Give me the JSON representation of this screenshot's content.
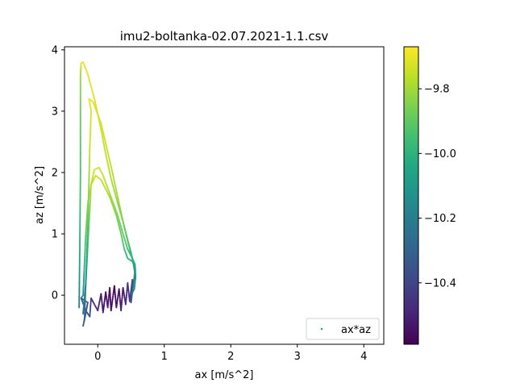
{
  "chart_data": {
    "type": "scatter",
    "title": "imu2-boltanka-02.07.2021-1.1.csv",
    "xlabel": "ax [m/s^2]",
    "ylabel": "az [m/s^2]",
    "xlim": [
      -0.5,
      4.3
    ],
    "ylim": [
      -0.8,
      4.05
    ],
    "xticks": [
      "0",
      "1",
      "2",
      "3",
      "4"
    ],
    "yticks": [
      "0",
      "1",
      "2",
      "3",
      "4"
    ],
    "legend": {
      "label": "ax*az",
      "placement": "lower-right"
    },
    "grid": false,
    "colorbar": {
      "cmap": "viridis",
      "range": [
        -10.59,
        -9.67
      ],
      "ticks": [
        "-9.8",
        "-10.0",
        "-10.2",
        "-10.4"
      ],
      "tick_values": [
        -9.8,
        -10.0,
        -10.2,
        -10.4
      ]
    },
    "series": [
      {
        "points": [
          [
            -0.22,
            -0.5,
            -10.33
          ],
          [
            -0.18,
            -0.3,
            -10.35
          ],
          [
            -0.15,
            -0.12,
            -10.4
          ],
          [
            -0.25,
            -0.05,
            -10.32
          ],
          [
            -0.18,
            -0.25,
            -10.3
          ],
          [
            -0.12,
            -0.35,
            -10.38
          ],
          [
            -0.1,
            -0.05,
            -10.45
          ],
          [
            0.0,
            -0.25,
            -10.48
          ],
          [
            0.05,
            0.02,
            -10.55
          ],
          [
            0.08,
            -0.28,
            -10.52
          ],
          [
            0.12,
            0.05,
            -10.58
          ],
          [
            0.15,
            -0.2,
            -10.5
          ],
          [
            0.18,
            0.12,
            -10.57
          ],
          [
            0.2,
            -0.25,
            -10.55
          ],
          [
            0.25,
            0.15,
            -10.58
          ],
          [
            0.28,
            -0.2,
            -10.52
          ],
          [
            0.32,
            0.1,
            -10.55
          ],
          [
            0.35,
            -0.25,
            -10.5
          ],
          [
            0.38,
            0.12,
            -10.54
          ],
          [
            0.42,
            -0.15,
            -10.48
          ],
          [
            0.45,
            0.2,
            -10.45
          ],
          [
            0.48,
            -0.1,
            -10.45
          ],
          [
            0.52,
            0.25,
            -10.4
          ],
          [
            0.5,
            -0.12,
            -10.38
          ],
          [
            0.55,
            0.3,
            -10.2
          ],
          [
            0.56,
            0.45,
            -10.1
          ],
          [
            0.52,
            0.55,
            -10.05
          ],
          [
            0.45,
            0.6,
            -10.0
          ],
          [
            0.4,
            0.75,
            -9.95
          ],
          [
            0.35,
            1.0,
            -9.9
          ],
          [
            0.28,
            1.3,
            -9.85
          ],
          [
            0.18,
            1.6,
            -9.8
          ],
          [
            0.05,
            1.88,
            -9.75
          ],
          [
            -0.03,
            1.95,
            -9.73
          ],
          [
            -0.1,
            1.8,
            -9.76
          ],
          [
            -0.15,
            1.5,
            -9.8
          ],
          [
            -0.18,
            1.0,
            -9.9
          ],
          [
            -0.2,
            0.5,
            -10.0
          ],
          [
            -0.22,
            0.0,
            -10.15
          ],
          [
            -0.25,
            -0.05,
            -10.25
          ]
        ]
      },
      {
        "points": [
          [
            -0.22,
            -0.3,
            -10.3
          ],
          [
            -0.18,
            0.2,
            -10.1
          ],
          [
            -0.15,
            0.8,
            -9.95
          ],
          [
            -0.12,
            1.4,
            -9.85
          ],
          [
            -0.1,
            1.8,
            -9.77
          ],
          [
            -0.05,
            2.05,
            -9.74
          ],
          [
            0.02,
            2.08,
            -9.73
          ],
          [
            0.08,
            1.95,
            -9.75
          ],
          [
            0.2,
            1.6,
            -9.8
          ],
          [
            0.3,
            1.3,
            -9.85
          ],
          [
            0.38,
            1.0,
            -9.9
          ],
          [
            0.45,
            0.75,
            -9.95
          ],
          [
            0.52,
            0.6,
            -10.0
          ],
          [
            0.56,
            0.5,
            -10.05
          ],
          [
            0.57,
            0.3,
            -10.1
          ],
          [
            0.55,
            0.1,
            -10.15
          ],
          [
            0.5,
            0.0,
            -10.25
          ]
        ]
      },
      {
        "points": [
          [
            -0.2,
            -0.4,
            -10.3
          ],
          [
            -0.17,
            0.5,
            -10.05
          ],
          [
            -0.14,
            1.5,
            -9.85
          ],
          [
            -0.12,
            2.4,
            -9.75
          ],
          [
            -0.1,
            3.0,
            -9.72
          ],
          [
            -0.13,
            3.2,
            -9.7
          ],
          [
            -0.07,
            3.15,
            -9.71
          ],
          [
            0.05,
            2.8,
            -9.73
          ],
          [
            0.2,
            2.1,
            -9.76
          ],
          [
            0.3,
            1.6,
            -9.8
          ],
          [
            0.4,
            1.1,
            -9.88
          ],
          [
            0.47,
            0.8,
            -9.94
          ],
          [
            0.53,
            0.55,
            -10.02
          ],
          [
            0.56,
            0.35,
            -10.08
          ]
        ]
      },
      {
        "points": [
          [
            -0.28,
            -0.2,
            -10.2
          ],
          [
            -0.27,
            0.8,
            -10.02
          ],
          [
            -0.26,
            2.0,
            -9.93
          ],
          [
            -0.26,
            3.0,
            -9.88
          ],
          [
            -0.26,
            3.6,
            -9.8
          ],
          [
            -0.25,
            3.78,
            -9.72
          ],
          [
            -0.22,
            3.8,
            -9.7
          ],
          [
            -0.15,
            3.6,
            -9.71
          ],
          [
            -0.05,
            3.2,
            -9.72
          ],
          [
            0.05,
            2.7,
            -9.74
          ],
          [
            0.12,
            2.3,
            -9.76
          ],
          [
            0.2,
            1.9,
            -9.78
          ],
          [
            0.3,
            1.5,
            -9.82
          ],
          [
            0.38,
            1.2,
            -9.86
          ],
          [
            0.45,
            0.9,
            -9.92
          ],
          [
            0.5,
            0.7,
            -9.97
          ],
          [
            0.55,
            0.45,
            -10.05
          ],
          [
            0.57,
            0.25,
            -10.12
          ]
        ]
      }
    ]
  }
}
